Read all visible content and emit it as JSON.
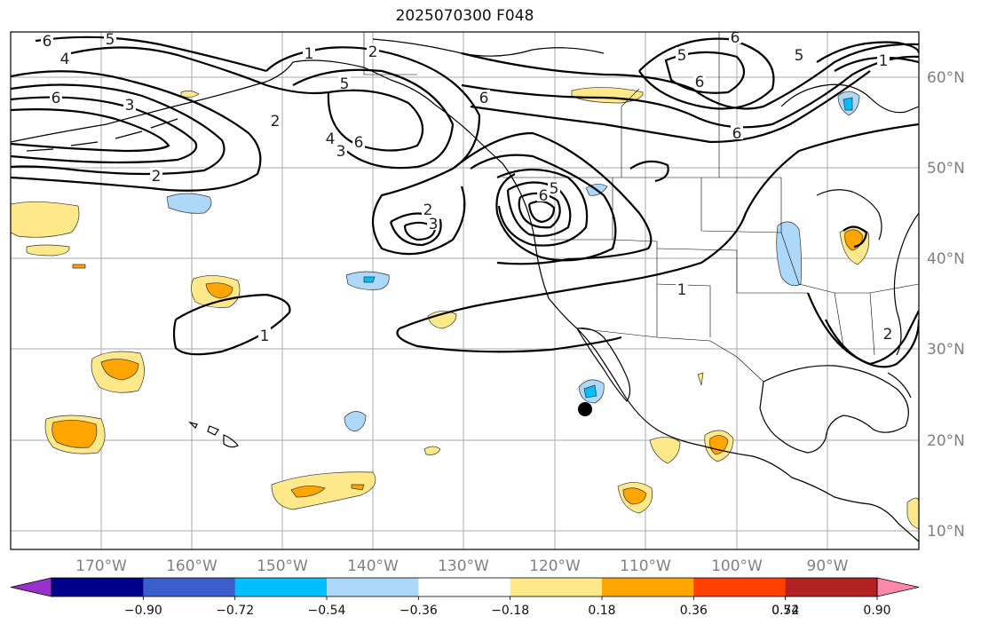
{
  "title": "2025070300 F048",
  "lon_labels": [
    "170°W",
    "160°W",
    "150°W",
    "140°W",
    "130°W",
    "120°W",
    "110°W",
    "100°W",
    "90°W"
  ],
  "lat_labels": [
    "60°N",
    "50°N",
    "40°N",
    "30°N",
    "20°N",
    "10°N"
  ],
  "colorbar": {
    "ticks": [
      "−0.90",
      "−0.72",
      "−0.54",
      "−0.36",
      "−0.18",
      "0.18",
      "0.36",
      "0.54",
      "0.72",
      "0.90"
    ],
    "colors": [
      "#9932cc",
      "#00008b",
      "#3a5fcd",
      "#00bfff",
      "#add8f8",
      "#ffffff",
      "#fee88a",
      "#ffa500",
      "#ff4000",
      "#b22222",
      "#ff88aa"
    ]
  },
  "contour_labels": [
    "6",
    "5",
    "4",
    "1",
    "2",
    "6",
    "3",
    "5",
    "2",
    "4",
    "6",
    "3",
    "5",
    "6",
    "2",
    "3",
    "6",
    "5",
    "6",
    "6",
    "1",
    "6",
    "5",
    "2",
    "1",
    "1",
    "2"
  ],
  "marker": "black-dot"
}
